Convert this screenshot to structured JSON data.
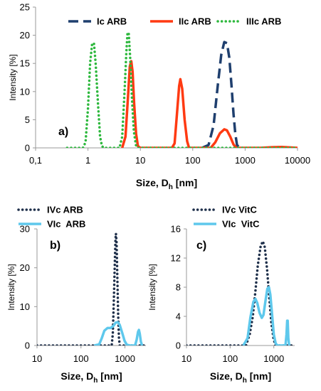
{
  "chart_data": [
    {
      "panel": "a)",
      "type": "line",
      "xscale": "log",
      "xlim": [
        0.1,
        10000
      ],
      "ylim": [
        0,
        25
      ],
      "xticks": [
        "0,1",
        "1",
        "10",
        "100",
        "1000",
        "10000"
      ],
      "yticks": [
        "0",
        "5",
        "10",
        "15",
        "20",
        "25"
      ],
      "xlabel_main": "Size, D",
      "xlabel_sub": "h",
      "xlabel_unit": " [nm]",
      "ylabel": "Intensity [%]",
      "legend_position": "top",
      "series": [
        {
          "name": "Ic ARB",
          "color": "#1f3f6e",
          "style": "dash",
          "points": [
            [
              150,
              0
            ],
            [
              200,
              0.5
            ],
            [
              250,
              4
            ],
            [
              300,
              11
            ],
            [
              350,
              16.5
            ],
            [
              400,
              18.8
            ],
            [
              450,
              18.6
            ],
            [
              500,
              16
            ],
            [
              550,
              11
            ],
            [
              600,
              6
            ],
            [
              650,
              2.5
            ],
            [
              700,
              0.5
            ],
            [
              800,
              0
            ]
          ]
        },
        {
          "name": "IIc ARB",
          "color": "#ff3a12",
          "style": "solid",
          "points": [
            [
              4.5,
              0
            ],
            [
              5.2,
              2
            ],
            [
              5.8,
              9
            ],
            [
              6.3,
              14.5
            ],
            [
              6.7,
              15.4
            ],
            [
              7.1,
              13.5
            ],
            [
              7.6,
              8
            ],
            [
              8.3,
              2.5
            ],
            [
              9,
              0.3
            ],
            [
              10,
              0
            ],
            [
              40,
              0
            ],
            [
              45,
              0.8
            ],
            [
              50,
              6
            ],
            [
              55,
              11
            ],
            [
              58,
              12.2
            ],
            [
              63,
              10.5
            ],
            [
              70,
              5
            ],
            [
              78,
              1.2
            ],
            [
              85,
              0
            ],
            [
              220,
              0
            ],
            [
              270,
              1
            ],
            [
              330,
              2.6
            ],
            [
              400,
              3.3
            ],
            [
              450,
              3.1
            ],
            [
              520,
              2
            ],
            [
              600,
              0.6
            ],
            [
              680,
              0
            ],
            [
              2000,
              0
            ],
            [
              3000,
              0.1
            ],
            [
              5000,
              0.15
            ],
            [
              10000,
              0
            ]
          ]
        },
        {
          "name": "IIIc ARB",
          "color": "#2db83d",
          "style": "dot",
          "points": [
            [
              0.4,
              0
            ],
            [
              0.8,
              0
            ],
            [
              0.9,
              1
            ],
            [
              1.0,
              7
            ],
            [
              1.1,
              15
            ],
            [
              1.2,
              18.5
            ],
            [
              1.3,
              18.6
            ],
            [
              1.4,
              15
            ],
            [
              1.55,
              8
            ],
            [
              1.7,
              2
            ],
            [
              1.85,
              0.3
            ],
            [
              2,
              0
            ],
            [
              4,
              0
            ],
            [
              4.5,
              2
            ],
            [
              5,
              10
            ],
            [
              5.4,
              17
            ],
            [
              5.7,
              20.5
            ],
            [
              6,
              20.3
            ],
            [
              6.4,
              16
            ],
            [
              6.9,
              9
            ],
            [
              7.5,
              3
            ],
            [
              8.2,
              0.5
            ],
            [
              9,
              0
            ],
            [
              10000,
              0
            ]
          ]
        }
      ]
    },
    {
      "panel": "b)",
      "type": "line",
      "xscale": "log",
      "xlim": [
        10,
        3000
      ],
      "ylim": [
        0,
        30
      ],
      "xticks": [
        "10",
        "100",
        "1000"
      ],
      "yticks": [
        "0",
        "10",
        "20",
        "30"
      ],
      "xlabel_main": "Size, D",
      "xlabel_sub": "h",
      "xlabel_unit": " [nm]",
      "ylabel": "Intensity [%]",
      "legend_position": "top-left",
      "series": [
        {
          "name": "IVc ARB",
          "color": "#1e2f4a",
          "style": "dot",
          "points": [
            [
              10,
              0
            ],
            [
              500,
              0
            ],
            [
              530,
              3
            ],
            [
              560,
              12
            ],
            [
              590,
              22
            ],
            [
              610,
              27.5
            ],
            [
              625,
              28.8
            ],
            [
              645,
              26.5
            ],
            [
              670,
              18
            ],
            [
              700,
              8
            ],
            [
              730,
              2
            ],
            [
              760,
              0
            ],
            [
              3000,
              0
            ]
          ]
        },
        {
          "name": "VIc  ARB",
          "color": "#5ec8ec",
          "style": "solid",
          "points": [
            [
              200,
              0
            ],
            [
              260,
              0.3
            ],
            [
              300,
              2
            ],
            [
              340,
              3.8
            ],
            [
              400,
              4.5
            ],
            [
              470,
              4.5
            ],
            [
              540,
              5
            ],
            [
              620,
              5.9
            ],
            [
              690,
              6
            ],
            [
              760,
              5.3
            ],
            [
              870,
              3.2
            ],
            [
              980,
              1.2
            ],
            [
              1100,
              0.2
            ],
            [
              1300,
              0
            ],
            [
              1700,
              0
            ],
            [
              1850,
              1.5
            ],
            [
              1980,
              3.5
            ],
            [
              2080,
              4
            ],
            [
              2180,
              3
            ],
            [
              2300,
              1
            ],
            [
              2450,
              0
            ]
          ]
        }
      ]
    },
    {
      "panel": "c)",
      "type": "line",
      "xscale": "log",
      "xlim": [
        10,
        3000
      ],
      "ylim": [
        0,
        16
      ],
      "xticks": [
        "10",
        "100",
        "1000"
      ],
      "yticks": [
        "0",
        "4",
        "8",
        "12",
        "16"
      ],
      "xlabel_main": "Size, D",
      "xlabel_sub": "h",
      "xlabel_unit": " [nm]",
      "ylabel": "Intensity [%]",
      "legend_position": "top-right",
      "series": [
        {
          "name": "IVc VitC",
          "color": "#1e2f4a",
          "style": "dot",
          "points": [
            [
              10,
              0
            ],
            [
              230,
              0
            ],
            [
              280,
              1.5
            ],
            [
              330,
              4
            ],
            [
              380,
              7.5
            ],
            [
              430,
              11
            ],
            [
              500,
              13.7
            ],
            [
              560,
              14.3
            ],
            [
              620,
              13.5
            ],
            [
              700,
              10.5
            ],
            [
              790,
              6.5
            ],
            [
              880,
              3
            ],
            [
              980,
              1
            ],
            [
              1080,
              0
            ],
            [
              3000,
              0
            ]
          ]
        },
        {
          "name": "VIc  VitC",
          "color": "#5ec8ec",
          "style": "solid",
          "points": [
            [
              200,
              0
            ],
            [
              250,
              1
            ],
            [
              290,
              3.8
            ],
            [
              340,
              6
            ],
            [
              380,
              6.4
            ],
            [
              420,
              5.8
            ],
            [
              470,
              4.5
            ],
            [
              530,
              3.8
            ],
            [
              580,
              4.2
            ],
            [
              640,
              6
            ],
            [
              710,
              7.8
            ],
            [
              770,
              8
            ],
            [
              830,
              7
            ],
            [
              920,
              4
            ],
            [
              1000,
              1.5
            ],
            [
              1100,
              0.3
            ],
            [
              1200,
              0
            ],
            [
              1850,
              0
            ],
            [
              1950,
              1.5
            ],
            [
              2020,
              3.4
            ],
            [
              2080,
              3.4
            ],
            [
              2150,
              1
            ],
            [
              2250,
              0
            ]
          ]
        }
      ]
    }
  ]
}
